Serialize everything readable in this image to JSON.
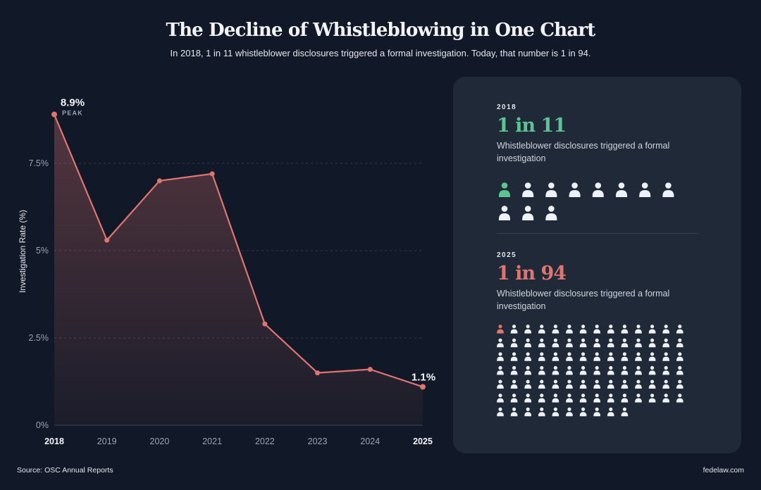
{
  "header": {
    "title": "The Decline of Whistleblowing in One Chart",
    "subtitle": "In 2018, 1 in 11 whistleblower disclosures triggered a formal investigation. Today, that number is 1 in 94."
  },
  "chart_data": {
    "type": "area",
    "title": "The Decline of Whistleblowing in One Chart",
    "xlabel": "",
    "ylabel": "Investigation Rate (%)",
    "x": [
      "2018",
      "2019",
      "2020",
      "2021",
      "2022",
      "2023",
      "2024",
      "2025"
    ],
    "series": [
      {
        "name": "Investigation Rate (%)",
        "values": [
          8.9,
          5.3,
          7.0,
          7.2,
          2.9,
          1.5,
          1.6,
          1.1
        ]
      }
    ],
    "ylim": [
      0,
      9
    ],
    "yticks": [
      0,
      2.5,
      5,
      7.5
    ],
    "ytick_labels": [
      "0%",
      "2.5%",
      "5%",
      "7.5%"
    ],
    "grid": true,
    "annotations": [
      {
        "x": "2018",
        "label": "8.9%",
        "sublabel": "PEAK"
      },
      {
        "x": "2025",
        "label": "1.1%"
      }
    ],
    "highlight_x": [
      "2018",
      "2025"
    ]
  },
  "colors": {
    "line": "#e07570",
    "accent_green": "#5cc492",
    "accent_red": "#e07570",
    "person": "#eef1f8"
  },
  "panel": {
    "first": {
      "year": "2018",
      "ratio": "1 in 11",
      "description": "Whistleblower disclosures triggered a formal investigation",
      "total": 11,
      "highlighted": 1
    },
    "second": {
      "year": "2025",
      "ratio": "1 in 94",
      "description": "Whistleblower disclosures triggered a formal investigation",
      "total": 94,
      "highlighted": 1
    }
  },
  "footer": {
    "source": "Source: OSC Annual Reports",
    "site": "fedelaw.com"
  }
}
